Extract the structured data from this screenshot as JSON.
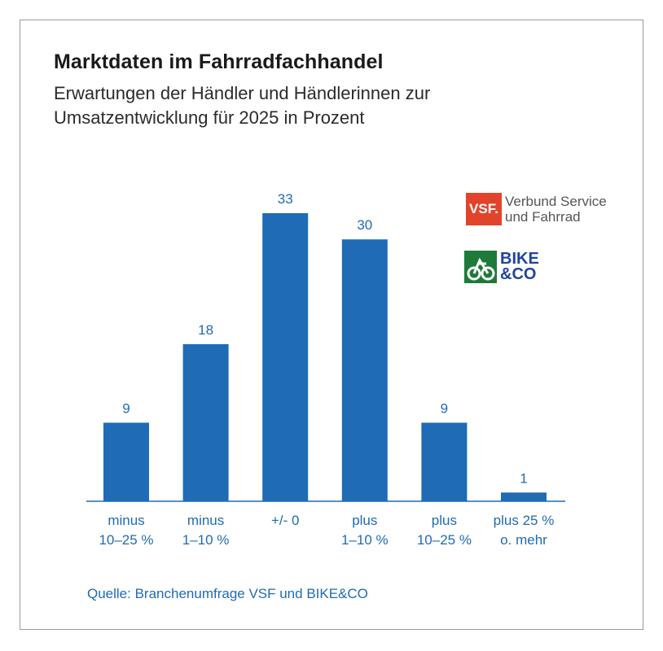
{
  "header": {
    "title": "Marktdaten im Fahrradfachhandel",
    "subtitle_line1": "Erwartungen der Händler und Händlerinnen zur",
    "subtitle_line2": "Umsatzentwicklung für 2025 in Prozent"
  },
  "logos": {
    "vsf_mark": "VSF.",
    "vsf_line1": "Verbund Service",
    "vsf_line2": "und Fahrrad",
    "bike_line1": "BIKE",
    "bike_line2": "&CO"
  },
  "source": "Quelle: Branchenumfrage VSF und BIKE&CO",
  "colors": {
    "bar": "#1f6bb5",
    "label": "#1f6bb5",
    "axis": "#1f6bb5",
    "vsf": "#e2442b",
    "bike_green": "#1e7a3a",
    "bike_blue": "#22449a"
  },
  "chart_data": {
    "type": "bar",
    "categories": [
      [
        "minus",
        "10–25 %"
      ],
      [
        "minus",
        "1–10 %"
      ],
      [
        "+/- 0"
      ],
      [
        "plus",
        "1–10 %"
      ],
      [
        "plus",
        "10–25 %"
      ],
      [
        "plus 25 %",
        "o. mehr"
      ]
    ],
    "values": [
      9,
      18,
      33,
      30,
      9,
      1
    ],
    "data_labels": [
      "9",
      "18",
      "33",
      "30",
      "9",
      "1"
    ],
    "ylim": [
      0,
      33
    ],
    "grid": false,
    "legend": "none"
  }
}
